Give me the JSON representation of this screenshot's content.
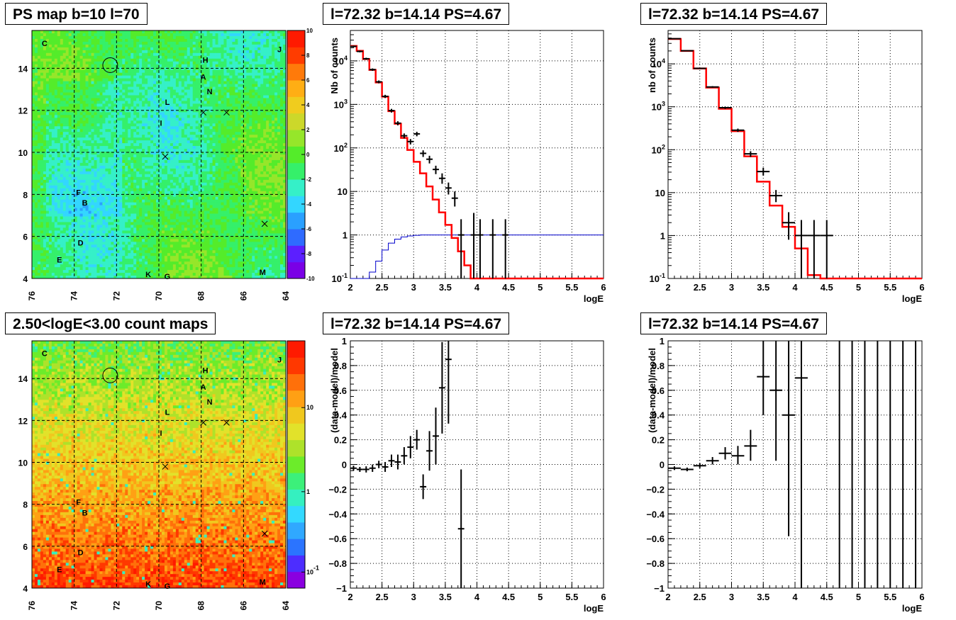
{
  "panels": {
    "ps_map": {
      "title": "PS map b=10 l=70",
      "xticks": [
        "76",
        "74",
        "72",
        "70",
        "68",
        "66",
        "64"
      ],
      "yticks": [
        "4",
        "6",
        "8",
        "10",
        "12",
        "14"
      ],
      "zticks": [
        "10",
        "8",
        "6",
        "4",
        "2",
        "0",
        "-2",
        "-4",
        "-6",
        "-8",
        "-10"
      ],
      "labels": [
        {
          "text": "C",
          "l": 75.4,
          "b": 15.2
        },
        {
          "text": "J",
          "l": 64.3,
          "b": 14.9
        },
        {
          "text": "H",
          "l": 67.8,
          "b": 14.4
        },
        {
          "text": "A",
          "l": 67.9,
          "b": 13.6
        },
        {
          "text": "N",
          "l": 67.6,
          "b": 12.9
        },
        {
          "text": "L",
          "l": 69.6,
          "b": 12.4
        },
        {
          "text": "I",
          "l": 69.9,
          "b": 11.4
        },
        {
          "text": "F",
          "l": 73.8,
          "b": 8.1
        },
        {
          "text": "B",
          "l": 73.5,
          "b": 7.6
        },
        {
          "text": "D",
          "l": 73.7,
          "b": 5.7
        },
        {
          "text": "E",
          "l": 74.7,
          "b": 4.9
        },
        {
          "text": "K",
          "l": 70.5,
          "b": 4.2
        },
        {
          "text": "G",
          "l": 69.6,
          "b": 4.1
        },
        {
          "text": "M",
          "l": 65.1,
          "b": 4.3
        }
      ],
      "crosses": [
        {
          "l": 67.9,
          "b": 11.9
        },
        {
          "l": 66.8,
          "b": 11.9
        },
        {
          "l": 69.7,
          "b": 9.8
        },
        {
          "l": 65.0,
          "b": 6.6
        }
      ],
      "circle": {
        "l": 72.3,
        "b": 14.15,
        "r": 0.35
      }
    },
    "count_map": {
      "title": "2.50<logE<3.00 count maps",
      "xticks": [
        "76",
        "74",
        "72",
        "70",
        "68",
        "66",
        "64"
      ],
      "yticks": [
        "4",
        "6",
        "8",
        "10",
        "12",
        "14"
      ],
      "zticks": [
        {
          "label": "10",
          "main": "10",
          "exp": ""
        },
        {
          "label": "1",
          "main": "1",
          "exp": ""
        },
        {
          "label": "10-1",
          "main": "10",
          "exp": "-1"
        }
      ],
      "labels": [
        {
          "text": "C",
          "l": 75.4,
          "b": 15.2
        },
        {
          "text": "J",
          "l": 64.3,
          "b": 14.9
        },
        {
          "text": "H",
          "l": 67.8,
          "b": 14.4
        },
        {
          "text": "A",
          "l": 67.9,
          "b": 13.6
        },
        {
          "text": "N",
          "l": 67.6,
          "b": 12.9
        },
        {
          "text": "L",
          "l": 69.6,
          "b": 12.4
        },
        {
          "text": "I",
          "l": 69.9,
          "b": 11.4
        },
        {
          "text": "F",
          "l": 73.8,
          "b": 8.1
        },
        {
          "text": "B",
          "l": 73.5,
          "b": 7.6
        },
        {
          "text": "D",
          "l": 73.7,
          "b": 5.7
        },
        {
          "text": "E",
          "l": 74.7,
          "b": 4.9
        },
        {
          "text": "K",
          "l": 70.5,
          "b": 4.2
        },
        {
          "text": "G",
          "l": 69.6,
          "b": 4.1
        },
        {
          "text": "M",
          "l": 65.1,
          "b": 4.3
        }
      ],
      "crosses": [
        {
          "l": 67.9,
          "b": 11.9
        },
        {
          "l": 66.8,
          "b": 11.9
        },
        {
          "l": 69.7,
          "b": 9.8
        },
        {
          "l": 65.0,
          "b": 6.6
        }
      ],
      "circle": {
        "l": 72.3,
        "b": 14.15,
        "r": 0.35
      }
    },
    "spec_mid": {
      "title": "l=72.32 b=14.14 PS=4.67"
    },
    "spec_right": {
      "title": "l=72.32 b=14.14 PS=4.67"
    },
    "res_mid": {
      "title": "l=72.32 b=14.14 PS=4.67"
    },
    "res_right": {
      "title": "l=72.32 b=14.14 PS=4.67"
    }
  },
  "colors": {
    "data": "#000000",
    "model": "#ff0000",
    "exposure": "#0000cc",
    "grid": "#000000"
  },
  "chart_data": [
    {
      "id": "ps_map",
      "type": "heatmap",
      "title": "PS map b=10 l=70",
      "xlim": [
        76,
        64
      ],
      "ylim": [
        4,
        15.8
      ],
      "zlim": [
        -10,
        10
      ],
      "palette": [
        "#7a00e6",
        "#5c1fff",
        "#2f6bff",
        "#2aa0ff",
        "#33d6ff",
        "#35f0c8",
        "#35f06a",
        "#54ec2a",
        "#96e62a",
        "#ccd82a",
        "#f0cc1e",
        "#ffae14",
        "#ff7a0a",
        "#ff3c00",
        "#ff1a00"
      ]
    },
    {
      "id": "spec_mid",
      "type": "line",
      "title": "l=72.32 b=14.14 PS=4.67",
      "xlabel": "logE",
      "ylabel": "Nb of counts",
      "xlim": [
        2,
        6
      ],
      "ylim": [
        0.1,
        50000
      ],
      "yscale": "log",
      "xticks": [
        "2",
        "2.5",
        "3",
        "3.5",
        "4",
        "4.5",
        "5",
        "5.5",
        "6"
      ],
      "yticks": [
        {
          "v": 0.1,
          "main": "10",
          "exp": "-1"
        },
        {
          "v": 1,
          "main": "1",
          "exp": ""
        },
        {
          "v": 10,
          "main": "10",
          "exp": ""
        },
        {
          "v": 100,
          "main": "10",
          "exp": "2"
        },
        {
          "v": 1000,
          "main": "10",
          "exp": "3"
        },
        {
          "v": 10000,
          "main": "10",
          "exp": "4"
        }
      ],
      "binwidth": 0.1,
      "model": {
        "name": "model",
        "edges_start": 2.0,
        "values": [
          22000,
          17000,
          11000,
          6200,
          3200,
          1500,
          700,
          360,
          170,
          90,
          48,
          26,
          13,
          6.5,
          3.3,
          1.7,
          0.85,
          0.42,
          0.2,
          0.1,
          0.1,
          0.1,
          0.1,
          0.1,
          0.1,
          0.1,
          0.1,
          0.1,
          0.1,
          0.1,
          0.1,
          0.1,
          0.1,
          0.1,
          0.1,
          0.1,
          0.1,
          0.1,
          0.1,
          0.1
        ]
      },
      "exposure": {
        "name": "exposure",
        "edges_start": 2.0,
        "values": [
          0.1,
          0.1,
          0.1,
          0.14,
          0.25,
          0.45,
          0.65,
          0.8,
          0.9,
          0.95,
          0.98,
          1,
          1,
          1,
          1,
          1,
          1,
          1,
          1,
          1,
          1,
          1,
          1,
          1,
          1,
          1,
          1,
          1,
          1,
          1,
          1,
          1,
          1,
          1,
          1,
          1,
          1,
          1,
          1,
          1
        ]
      },
      "data": [
        {
          "x": 2.05,
          "y": 21500,
          "lo": 20500,
          "hi": 22500
        },
        {
          "x": 2.15,
          "y": 16500,
          "lo": 15700,
          "hi": 17300
        },
        {
          "x": 2.25,
          "y": 11200,
          "lo": 10600,
          "hi": 11800
        },
        {
          "x": 2.35,
          "y": 6300,
          "lo": 5900,
          "hi": 6700
        },
        {
          "x": 2.45,
          "y": 3300,
          "lo": 3050,
          "hi": 3550
        },
        {
          "x": 2.55,
          "y": 1530,
          "lo": 1400,
          "hi": 1660
        },
        {
          "x": 2.65,
          "y": 720,
          "lo": 650,
          "hi": 790
        },
        {
          "x": 2.75,
          "y": 370,
          "lo": 330,
          "hi": 410
        },
        {
          "x": 2.85,
          "y": 190,
          "lo": 165,
          "hi": 215
        },
        {
          "x": 2.95,
          "y": 140,
          "lo": 120,
          "hi": 160
        },
        {
          "x": 3.05,
          "y": 210,
          "lo": 185,
          "hi": 235
        },
        {
          "x": 3.15,
          "y": 75,
          "lo": 62,
          "hi": 88
        },
        {
          "x": 3.25,
          "y": 55,
          "lo": 44,
          "hi": 66
        },
        {
          "x": 3.35,
          "y": 32,
          "lo": 25,
          "hi": 39
        },
        {
          "x": 3.45,
          "y": 20,
          "lo": 15,
          "hi": 26
        },
        {
          "x": 3.55,
          "y": 12,
          "lo": 8.5,
          "hi": 16
        },
        {
          "x": 3.65,
          "y": 7,
          "lo": 4.5,
          "hi": 10
        },
        {
          "x": 3.75,
          "y": 1,
          "lo": 0.1,
          "hi": 2.3
        },
        {
          "x": 3.95,
          "y": 1,
          "lo": 0.1,
          "hi": 3.2
        },
        {
          "x": 4.05,
          "y": 1,
          "lo": 0.1,
          "hi": 2.3
        },
        {
          "x": 4.25,
          "y": 1,
          "lo": 0.1,
          "hi": 2.3
        },
        {
          "x": 4.45,
          "y": 1,
          "lo": 0.1,
          "hi": 2.3
        }
      ]
    },
    {
      "id": "spec_right",
      "type": "line",
      "title": "l=72.32 b=14.14 PS=4.67",
      "xlabel": "logE",
      "ylabel": "nb of counts",
      "xlim": [
        2,
        6
      ],
      "ylim": [
        0.1,
        60000
      ],
      "yscale": "log",
      "xticks": [
        "2",
        "2.5",
        "3",
        "3.5",
        "4",
        "4.5",
        "5",
        "5.5",
        "6"
      ],
      "yticks": [
        {
          "v": 0.1,
          "main": "10",
          "exp": "-1"
        },
        {
          "v": 1,
          "main": "1",
          "exp": ""
        },
        {
          "v": 10,
          "main": "10",
          "exp": ""
        },
        {
          "v": 100,
          "main": "10",
          "exp": "2"
        },
        {
          "v": 1000,
          "main": "10",
          "exp": "3"
        },
        {
          "v": 10000,
          "main": "10",
          "exp": "4"
        }
      ],
      "binwidth": 0.2,
      "model": {
        "name": "model",
        "edges_start": 2.0,
        "values": [
          38000,
          20000,
          7800,
          2800,
          900,
          270,
          70,
          18,
          5,
          1.6,
          0.5,
          0.12,
          0.1,
          0.1,
          0.1,
          0.1,
          0.1,
          0.1,
          0.1,
          0.1
        ]
      },
      "data": [
        {
          "x": 2.1,
          "y": 38500,
          "lo": 37800,
          "hi": 39200
        },
        {
          "x": 2.3,
          "y": 20200,
          "lo": 19800,
          "hi": 20600
        },
        {
          "x": 2.5,
          "y": 7850,
          "lo": 7650,
          "hi": 8050
        },
        {
          "x": 2.7,
          "y": 2900,
          "lo": 2780,
          "hi": 3020
        },
        {
          "x": 2.9,
          "y": 950,
          "lo": 890,
          "hi": 1010
        },
        {
          "x": 3.1,
          "y": 285,
          "lo": 260,
          "hi": 310
        },
        {
          "x": 3.3,
          "y": 80,
          "lo": 68,
          "hi": 92
        },
        {
          "x": 3.5,
          "y": 31,
          "lo": 25,
          "hi": 38
        },
        {
          "x": 3.7,
          "y": 8.5,
          "lo": 6,
          "hi": 11.5
        },
        {
          "x": 3.9,
          "y": 2,
          "lo": 0.8,
          "hi": 3.5
        },
        {
          "x": 4.1,
          "y": 1,
          "lo": 0.1,
          "hi": 2.3
        },
        {
          "x": 4.3,
          "y": 1,
          "lo": 0.1,
          "hi": 2.3
        },
        {
          "x": 4.5,
          "y": 1,
          "lo": 0.1,
          "hi": 2.3
        }
      ]
    },
    {
      "id": "count_map",
      "type": "heatmap",
      "title": "2.50<logE<3.00 count maps",
      "xlim": [
        76,
        64
      ],
      "ylim": [
        4,
        15.8
      ],
      "zscale": "log",
      "palette": [
        "#8a00e0",
        "#4d2dff",
        "#2b74ff",
        "#30a8ff",
        "#33d9ff",
        "#35f0c0",
        "#3cf07a",
        "#6cec2a",
        "#aee22a",
        "#e2e22a",
        "#f0c81e",
        "#ffa014",
        "#ff700a",
        "#ff3800",
        "#ff1a00"
      ]
    },
    {
      "id": "res_mid",
      "type": "scatter",
      "title": "l=72.32 b=14.14 PS=4.67",
      "xlabel": "logE",
      "ylabel": "(data-model)/model",
      "xlim": [
        2,
        6
      ],
      "ylim": [
        -1,
        1
      ],
      "xticks": [
        "2",
        "2.5",
        "3",
        "3.5",
        "4",
        "4.5",
        "5",
        "5.5",
        "6"
      ],
      "yticks": [
        "-1",
        "-0.8",
        "-0.6",
        "-0.4",
        "-0.2",
        "0",
        "0.2",
        "0.4",
        "0.6",
        "0.8",
        "1"
      ],
      "binwidth": 0.1,
      "data": [
        {
          "x": 2.05,
          "y": -0.03,
          "lo": -0.05,
          "hi": -0.01
        },
        {
          "x": 2.15,
          "y": -0.04,
          "lo": -0.06,
          "hi": -0.02
        },
        {
          "x": 2.25,
          "y": -0.04,
          "lo": -0.065,
          "hi": -0.015
        },
        {
          "x": 2.35,
          "y": -0.03,
          "lo": -0.06,
          "hi": 0.0
        },
        {
          "x": 2.45,
          "y": 0.0,
          "lo": -0.03,
          "hi": 0.03
        },
        {
          "x": 2.55,
          "y": -0.02,
          "lo": -0.06,
          "hi": 0.02
        },
        {
          "x": 2.65,
          "y": 0.03,
          "lo": -0.02,
          "hi": 0.08
        },
        {
          "x": 2.75,
          "y": 0.02,
          "lo": -0.04,
          "hi": 0.08
        },
        {
          "x": 2.85,
          "y": 0.07,
          "lo": 0.0,
          "hi": 0.14
        },
        {
          "x": 2.95,
          "y": 0.14,
          "lo": 0.05,
          "hi": 0.23
        },
        {
          "x": 3.05,
          "y": 0.2,
          "lo": 0.12,
          "hi": 0.28
        },
        {
          "x": 3.15,
          "y": -0.18,
          "lo": -0.28,
          "hi": -0.08
        },
        {
          "x": 3.25,
          "y": 0.11,
          "lo": -0.05,
          "hi": 0.27
        },
        {
          "x": 3.35,
          "y": 0.23,
          "lo": 0.0,
          "hi": 0.46
        },
        {
          "x": 3.45,
          "y": 0.62,
          "lo": 0.25,
          "hi": 0.99
        },
        {
          "x": 3.55,
          "y": 0.85,
          "lo": 0.33,
          "hi": 1.0
        },
        {
          "x": 3.75,
          "y": -0.52,
          "lo": -1.0,
          "hi": -0.04
        }
      ]
    },
    {
      "id": "res_right",
      "type": "scatter",
      "title": "l=72.32 b=14.14 PS=4.67",
      "xlabel": "logE",
      "ylabel": "(data-model)/model",
      "xlim": [
        2,
        6
      ],
      "ylim": [
        -1,
        1
      ],
      "xticks": [
        "2",
        "2.5",
        "3",
        "3.5",
        "4",
        "4.5",
        "5",
        "5.5",
        "6"
      ],
      "yticks": [
        "-1",
        "-0.8",
        "-0.6",
        "-0.4",
        "-0.2",
        "0",
        "0.2",
        "0.4",
        "0.6",
        "0.8",
        "1"
      ],
      "binwidth": 0.2,
      "data": [
        {
          "x": 2.1,
          "y": -0.03,
          "lo": -0.045,
          "hi": -0.015
        },
        {
          "x": 2.3,
          "y": -0.04,
          "lo": -0.055,
          "hi": -0.025
        },
        {
          "x": 2.5,
          "y": -0.01,
          "lo": -0.03,
          "hi": 0.01
        },
        {
          "x": 2.7,
          "y": 0.03,
          "lo": 0.0,
          "hi": 0.06
        },
        {
          "x": 2.9,
          "y": 0.09,
          "lo": 0.04,
          "hi": 0.14
        },
        {
          "x": 3.1,
          "y": 0.07,
          "lo": 0.0,
          "hi": 0.15
        },
        {
          "x": 3.3,
          "y": 0.15,
          "lo": 0.03,
          "hi": 0.28
        },
        {
          "x": 3.5,
          "y": 0.71,
          "lo": 0.4,
          "hi": 1.0
        },
        {
          "x": 3.7,
          "y": 0.6,
          "lo": 0.03,
          "hi": 1.0
        },
        {
          "x": 3.9,
          "y": 0.4,
          "lo": -0.58,
          "hi": 1.0
        },
        {
          "x": 4.1,
          "y": 0.7,
          "lo": -1.0,
          "hi": 1.0
        },
        {
          "x": 4.7,
          "y": null,
          "lo": -1.0,
          "hi": 1.0
        },
        {
          "x": 4.9,
          "y": null,
          "lo": -1.0,
          "hi": 1.0
        },
        {
          "x": 5.1,
          "y": null,
          "lo": -1.0,
          "hi": 1.0
        },
        {
          "x": 5.3,
          "y": null,
          "lo": -1.0,
          "hi": 1.0
        },
        {
          "x": 5.5,
          "y": null,
          "lo": -1.0,
          "hi": 1.0
        },
        {
          "x": 5.7,
          "y": null,
          "lo": -1.0,
          "hi": 1.0
        },
        {
          "x": 5.9,
          "y": null,
          "lo": -1.0,
          "hi": 1.0
        }
      ]
    }
  ]
}
